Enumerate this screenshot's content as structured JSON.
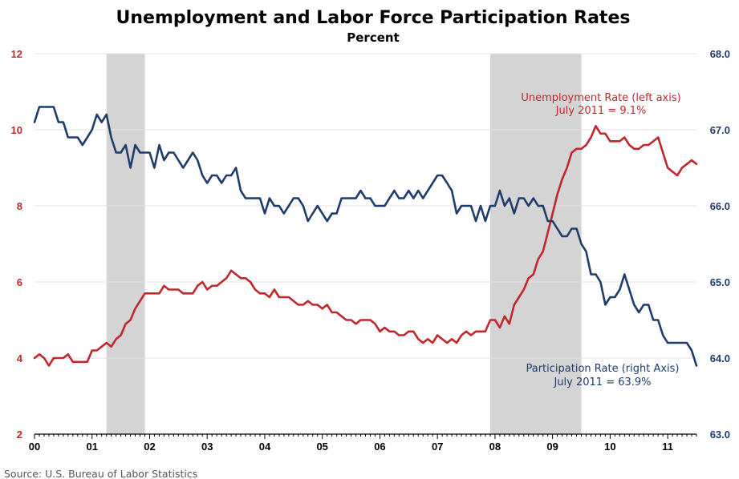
{
  "chart_data": {
    "type": "line",
    "title": "Unemployment and Labor Force Participation Rates",
    "subtitle": "Percent",
    "x_tick_labels": [
      "00",
      "01",
      "02",
      "03",
      "04",
      "05",
      "06",
      "07",
      "08",
      "09",
      "10",
      "11"
    ],
    "x_range": [
      2000.0,
      2011.5
    ],
    "left_axis": {
      "range": [
        2,
        12
      ],
      "ticks": [
        2,
        4,
        6,
        8,
        10,
        12
      ],
      "color": "#c0282e"
    },
    "right_axis": {
      "range": [
        63.0,
        68.0
      ],
      "ticks": [
        "63.0",
        "64.0",
        "65.0",
        "66.0",
        "67.0",
        "68.0"
      ],
      "color": "#1f3d6b"
    },
    "grid": true,
    "recessions": [
      {
        "start": 2001.25,
        "end": 2001.917
      },
      {
        "start": 2007.917,
        "end": 2009.5
      }
    ],
    "series": [
      {
        "axis": "left",
        "color": "#c0282e",
        "annotation": [
          "Unemployment Rate (left axis)",
          "July 2011 = 9.1%"
        ],
        "points": [
          [
            2000.0,
            4.0
          ],
          [
            2000.083,
            4.1
          ],
          [
            2000.167,
            4.0
          ],
          [
            2000.25,
            3.8
          ],
          [
            2000.333,
            4.0
          ],
          [
            2000.417,
            4.0
          ],
          [
            2000.5,
            4.0
          ],
          [
            2000.583,
            4.1
          ],
          [
            2000.667,
            3.9
          ],
          [
            2000.75,
            3.9
          ],
          [
            2000.833,
            3.9
          ],
          [
            2000.917,
            3.9
          ],
          [
            2001.0,
            4.2
          ],
          [
            2001.083,
            4.2
          ],
          [
            2001.167,
            4.3
          ],
          [
            2001.25,
            4.4
          ],
          [
            2001.333,
            4.3
          ],
          [
            2001.417,
            4.5
          ],
          [
            2001.5,
            4.6
          ],
          [
            2001.583,
            4.9
          ],
          [
            2001.667,
            5.0
          ],
          [
            2001.75,
            5.3
          ],
          [
            2001.833,
            5.5
          ],
          [
            2001.917,
            5.7
          ],
          [
            2002.0,
            5.7
          ],
          [
            2002.083,
            5.7
          ],
          [
            2002.167,
            5.7
          ],
          [
            2002.25,
            5.9
          ],
          [
            2002.333,
            5.8
          ],
          [
            2002.417,
            5.8
          ],
          [
            2002.5,
            5.8
          ],
          [
            2002.583,
            5.7
          ],
          [
            2002.667,
            5.7
          ],
          [
            2002.75,
            5.7
          ],
          [
            2002.833,
            5.9
          ],
          [
            2002.917,
            6.0
          ],
          [
            2003.0,
            5.8
          ],
          [
            2003.083,
            5.9
          ],
          [
            2003.167,
            5.9
          ],
          [
            2003.25,
            6.0
          ],
          [
            2003.333,
            6.1
          ],
          [
            2003.417,
            6.3
          ],
          [
            2003.5,
            6.2
          ],
          [
            2003.583,
            6.1
          ],
          [
            2003.667,
            6.1
          ],
          [
            2003.75,
            6.0
          ],
          [
            2003.833,
            5.8
          ],
          [
            2003.917,
            5.7
          ],
          [
            2004.0,
            5.7
          ],
          [
            2004.083,
            5.6
          ],
          [
            2004.167,
            5.8
          ],
          [
            2004.25,
            5.6
          ],
          [
            2004.333,
            5.6
          ],
          [
            2004.417,
            5.6
          ],
          [
            2004.5,
            5.5
          ],
          [
            2004.583,
            5.4
          ],
          [
            2004.667,
            5.4
          ],
          [
            2004.75,
            5.5
          ],
          [
            2004.833,
            5.4
          ],
          [
            2004.917,
            5.4
          ],
          [
            2005.0,
            5.3
          ],
          [
            2005.083,
            5.4
          ],
          [
            2005.167,
            5.2
          ],
          [
            2005.25,
            5.2
          ],
          [
            2005.333,
            5.1
          ],
          [
            2005.417,
            5.0
          ],
          [
            2005.5,
            5.0
          ],
          [
            2005.583,
            4.9
          ],
          [
            2005.667,
            5.0
          ],
          [
            2005.75,
            5.0
          ],
          [
            2005.833,
            5.0
          ],
          [
            2005.917,
            4.9
          ],
          [
            2006.0,
            4.7
          ],
          [
            2006.083,
            4.8
          ],
          [
            2006.167,
            4.7
          ],
          [
            2006.25,
            4.7
          ],
          [
            2006.333,
            4.6
          ],
          [
            2006.417,
            4.6
          ],
          [
            2006.5,
            4.7
          ],
          [
            2006.583,
            4.7
          ],
          [
            2006.667,
            4.5
          ],
          [
            2006.75,
            4.4
          ],
          [
            2006.833,
            4.5
          ],
          [
            2006.917,
            4.4
          ],
          [
            2007.0,
            4.6
          ],
          [
            2007.083,
            4.5
          ],
          [
            2007.167,
            4.4
          ],
          [
            2007.25,
            4.5
          ],
          [
            2007.333,
            4.4
          ],
          [
            2007.417,
            4.6
          ],
          [
            2007.5,
            4.7
          ],
          [
            2007.583,
            4.6
          ],
          [
            2007.667,
            4.7
          ],
          [
            2007.75,
            4.7
          ],
          [
            2007.833,
            4.7
          ],
          [
            2007.917,
            5.0
          ],
          [
            2008.0,
            5.0
          ],
          [
            2008.083,
            4.8
          ],
          [
            2008.167,
            5.1
          ],
          [
            2008.25,
            4.9
          ],
          [
            2008.333,
            5.4
          ],
          [
            2008.417,
            5.6
          ],
          [
            2008.5,
            5.8
          ],
          [
            2008.583,
            6.1
          ],
          [
            2008.667,
            6.2
          ],
          [
            2008.75,
            6.6
          ],
          [
            2008.833,
            6.8
          ],
          [
            2008.917,
            7.3
          ],
          [
            2009.0,
            7.8
          ],
          [
            2009.083,
            8.3
          ],
          [
            2009.167,
            8.7
          ],
          [
            2009.25,
            9.0
          ],
          [
            2009.333,
            9.4
          ],
          [
            2009.417,
            9.5
          ],
          [
            2009.5,
            9.5
          ],
          [
            2009.583,
            9.6
          ],
          [
            2009.667,
            9.8
          ],
          [
            2009.75,
            10.1
          ],
          [
            2009.833,
            9.9
          ],
          [
            2009.917,
            9.9
          ],
          [
            2010.0,
            9.7
          ],
          [
            2010.083,
            9.7
          ],
          [
            2010.167,
            9.7
          ],
          [
            2010.25,
            9.8
          ],
          [
            2010.333,
            9.6
          ],
          [
            2010.417,
            9.5
          ],
          [
            2010.5,
            9.5
          ],
          [
            2010.583,
            9.6
          ],
          [
            2010.667,
            9.6
          ],
          [
            2010.75,
            9.7
          ],
          [
            2010.833,
            9.8
          ],
          [
            2010.917,
            9.4
          ],
          [
            2011.0,
            9.0
          ],
          [
            2011.083,
            8.9
          ],
          [
            2011.167,
            8.8
          ],
          [
            2011.25,
            9.0
          ],
          [
            2011.333,
            9.1
          ],
          [
            2011.417,
            9.2
          ],
          [
            2011.5,
            9.1
          ]
        ]
      },
      {
        "axis": "right",
        "color": "#1f3d6b",
        "annotation": [
          "Participation Rate (right Axis)",
          "July 2011 = 63.9%"
        ],
        "points": [
          [
            2000.0,
            67.1
          ],
          [
            2000.083,
            67.3
          ],
          [
            2000.167,
            67.3
          ],
          [
            2000.25,
            67.3
          ],
          [
            2000.333,
            67.3
          ],
          [
            2000.417,
            67.1
          ],
          [
            2000.5,
            67.1
          ],
          [
            2000.583,
            66.9
          ],
          [
            2000.667,
            66.9
          ],
          [
            2000.75,
            66.9
          ],
          [
            2000.833,
            66.8
          ],
          [
            2000.917,
            66.9
          ],
          [
            2001.0,
            67.0
          ],
          [
            2001.083,
            67.2
          ],
          [
            2001.167,
            67.1
          ],
          [
            2001.25,
            67.2
          ],
          [
            2001.333,
            66.9
          ],
          [
            2001.417,
            66.7
          ],
          [
            2001.5,
            66.7
          ],
          [
            2001.583,
            66.8
          ],
          [
            2001.667,
            66.5
          ],
          [
            2001.75,
            66.8
          ],
          [
            2001.833,
            66.7
          ],
          [
            2001.917,
            66.7
          ],
          [
            2002.0,
            66.7
          ],
          [
            2002.083,
            66.5
          ],
          [
            2002.167,
            66.8
          ],
          [
            2002.25,
            66.6
          ],
          [
            2002.333,
            66.7
          ],
          [
            2002.417,
            66.7
          ],
          [
            2002.5,
            66.6
          ],
          [
            2002.583,
            66.5
          ],
          [
            2002.667,
            66.6
          ],
          [
            2002.75,
            66.7
          ],
          [
            2002.833,
            66.6
          ],
          [
            2002.917,
            66.4
          ],
          [
            2003.0,
            66.3
          ],
          [
            2003.083,
            66.4
          ],
          [
            2003.167,
            66.4
          ],
          [
            2003.25,
            66.3
          ],
          [
            2003.333,
            66.4
          ],
          [
            2003.417,
            66.4
          ],
          [
            2003.5,
            66.5
          ],
          [
            2003.583,
            66.2
          ],
          [
            2003.667,
            66.1
          ],
          [
            2003.75,
            66.1
          ],
          [
            2003.833,
            66.1
          ],
          [
            2003.917,
            66.1
          ],
          [
            2004.0,
            65.9
          ],
          [
            2004.083,
            66.1
          ],
          [
            2004.167,
            66.0
          ],
          [
            2004.25,
            66.0
          ],
          [
            2004.333,
            65.9
          ],
          [
            2004.417,
            66.0
          ],
          [
            2004.5,
            66.1
          ],
          [
            2004.583,
            66.1
          ],
          [
            2004.667,
            66.0
          ],
          [
            2004.75,
            65.8
          ],
          [
            2004.833,
            65.9
          ],
          [
            2004.917,
            66.0
          ],
          [
            2005.0,
            65.9
          ],
          [
            2005.083,
            65.8
          ],
          [
            2005.167,
            65.9
          ],
          [
            2005.25,
            65.9
          ],
          [
            2005.333,
            66.1
          ],
          [
            2005.417,
            66.1
          ],
          [
            2005.5,
            66.1
          ],
          [
            2005.583,
            66.1
          ],
          [
            2005.667,
            66.2
          ],
          [
            2005.75,
            66.1
          ],
          [
            2005.833,
            66.1
          ],
          [
            2005.917,
            66.0
          ],
          [
            2006.0,
            66.0
          ],
          [
            2006.083,
            66.0
          ],
          [
            2006.167,
            66.1
          ],
          [
            2006.25,
            66.2
          ],
          [
            2006.333,
            66.1
          ],
          [
            2006.417,
            66.1
          ],
          [
            2006.5,
            66.2
          ],
          [
            2006.583,
            66.1
          ],
          [
            2006.667,
            66.2
          ],
          [
            2006.75,
            66.1
          ],
          [
            2006.833,
            66.2
          ],
          [
            2006.917,
            66.3
          ],
          [
            2007.0,
            66.4
          ],
          [
            2007.083,
            66.4
          ],
          [
            2007.167,
            66.3
          ],
          [
            2007.25,
            66.2
          ],
          [
            2007.333,
            65.9
          ],
          [
            2007.417,
            66.0
          ],
          [
            2007.5,
            66.0
          ],
          [
            2007.583,
            66.0
          ],
          [
            2007.667,
            65.8
          ],
          [
            2007.75,
            66.0
          ],
          [
            2007.833,
            65.8
          ],
          [
            2007.917,
            66.0
          ],
          [
            2008.0,
            66.0
          ],
          [
            2008.083,
            66.2
          ],
          [
            2008.167,
            66.0
          ],
          [
            2008.25,
            66.1
          ],
          [
            2008.333,
            65.9
          ],
          [
            2008.417,
            66.1
          ],
          [
            2008.5,
            66.1
          ],
          [
            2008.583,
            66.0
          ],
          [
            2008.667,
            66.1
          ],
          [
            2008.75,
            66.0
          ],
          [
            2008.833,
            66.0
          ],
          [
            2008.917,
            65.8
          ],
          [
            2009.0,
            65.8
          ],
          [
            2009.083,
            65.7
          ],
          [
            2009.167,
            65.6
          ],
          [
            2009.25,
            65.6
          ],
          [
            2009.333,
            65.7
          ],
          [
            2009.417,
            65.7
          ],
          [
            2009.5,
            65.5
          ],
          [
            2009.583,
            65.4
          ],
          [
            2009.667,
            65.1
          ],
          [
            2009.75,
            65.1
          ],
          [
            2009.833,
            65.0
          ],
          [
            2009.917,
            64.7
          ],
          [
            2010.0,
            64.8
          ],
          [
            2010.083,
            64.8
          ],
          [
            2010.167,
            64.9
          ],
          [
            2010.25,
            65.1
          ],
          [
            2010.333,
            64.9
          ],
          [
            2010.417,
            64.7
          ],
          [
            2010.5,
            64.6
          ],
          [
            2010.583,
            64.7
          ],
          [
            2010.667,
            64.7
          ],
          [
            2010.75,
            64.5
          ],
          [
            2010.833,
            64.5
          ],
          [
            2010.917,
            64.3
          ],
          [
            2011.0,
            64.2
          ],
          [
            2011.083,
            64.2
          ],
          [
            2011.167,
            64.2
          ],
          [
            2011.25,
            64.2
          ],
          [
            2011.333,
            64.2
          ],
          [
            2011.417,
            64.1
          ],
          [
            2011.5,
            63.9
          ]
        ]
      }
    ]
  },
  "source": "Source: U.S. Bureau of Labor Statistics"
}
